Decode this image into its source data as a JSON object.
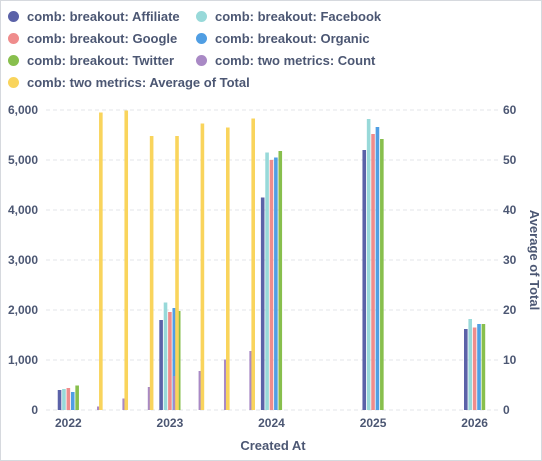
{
  "legend": [
    {
      "label": "comb: breakout: Affiliate",
      "color": "#5b62a8"
    },
    {
      "label": "comb: breakout: Facebook",
      "color": "#98d9d9"
    },
    {
      "label": "comb: breakout: Google",
      "color": "#ef8c8c"
    },
    {
      "label": "comb: breakout: Organic",
      "color": "#509ee3"
    },
    {
      "label": "comb: breakout: Twitter",
      "color": "#88bf4d"
    },
    {
      "label": "comb: two metrics: Count",
      "color": "#a989c5"
    },
    {
      "label": "comb: two metrics: Average of Total",
      "color": "#f9d45c"
    }
  ],
  "chart_data": {
    "type": "bar",
    "xlabel": "Created At",
    "ylabel": "",
    "y2label": "Average of Total",
    "x_ticks": [
      "2022",
      "2023",
      "2024",
      "2025",
      "2026"
    ],
    "y_ticks": [
      "0",
      "1,000",
      "2,000",
      "3,000",
      "4,000",
      "5,000",
      "6,000"
    ],
    "y2_ticks": [
      "0",
      "10",
      "20",
      "30",
      "40",
      "50",
      "60"
    ],
    "ylim": [
      0,
      6000
    ],
    "y2lim": [
      0,
      60
    ],
    "grid": true,
    "legend_position": "top",
    "breakout_series": [
      {
        "name": "comb: breakout: Affiliate",
        "color": "#5b62a8",
        "points": [
          {
            "x": 2022.0,
            "y": 400
          },
          {
            "x": 2023.0,
            "y": 1800
          },
          {
            "x": 2024.0,
            "y": 4250
          },
          {
            "x": 2025.0,
            "y": 5200
          },
          {
            "x": 2026.0,
            "y": 1620
          }
        ]
      },
      {
        "name": "comb: breakout: Facebook",
        "color": "#98d9d9",
        "points": [
          {
            "x": 2022.0,
            "y": 420
          },
          {
            "x": 2023.0,
            "y": 2150
          },
          {
            "x": 2024.0,
            "y": 5150
          },
          {
            "x": 2025.0,
            "y": 5820
          },
          {
            "x": 2026.0,
            "y": 1820
          }
        ]
      },
      {
        "name": "comb: breakout: Google",
        "color": "#ef8c8c",
        "points": [
          {
            "x": 2022.0,
            "y": 440
          },
          {
            "x": 2023.0,
            "y": 1960
          },
          {
            "x": 2024.0,
            "y": 5000
          },
          {
            "x": 2025.0,
            "y": 5520
          },
          {
            "x": 2026.0,
            "y": 1650
          }
        ]
      },
      {
        "name": "comb: breakout: Organic",
        "color": "#509ee3",
        "points": [
          {
            "x": 2022.0,
            "y": 360
          },
          {
            "x": 2023.0,
            "y": 2040
          },
          {
            "x": 2024.0,
            "y": 5050
          },
          {
            "x": 2025.0,
            "y": 5660
          },
          {
            "x": 2026.0,
            "y": 1720
          }
        ]
      },
      {
        "name": "comb: breakout: Twitter",
        "color": "#88bf4d",
        "points": [
          {
            "x": 2022.0,
            "y": 490
          },
          {
            "x": 2023.0,
            "y": 1980
          },
          {
            "x": 2024.0,
            "y": 5180
          },
          {
            "x": 2025.0,
            "y": 5420
          },
          {
            "x": 2026.0,
            "y": 1720
          }
        ]
      }
    ],
    "count_series": {
      "name": "comb: two metrics: Count",
      "color": "#a989c5",
      "points": [
        {
          "x": 2022.3,
          "y": 70
        },
        {
          "x": 2022.55,
          "y": 230
        },
        {
          "x": 2022.8,
          "y": 460
        },
        {
          "x": 2023.05,
          "y": 680
        },
        {
          "x": 2023.3,
          "y": 780
        },
        {
          "x": 2023.55,
          "y": 1010
        },
        {
          "x": 2023.8,
          "y": 1180
        }
      ]
    },
    "average_series": {
      "name": "comb: two metrics: Average of Total",
      "color": "#f9d45c",
      "points": [
        {
          "x": 2022.32,
          "y": 59.5
        },
        {
          "x": 2022.57,
          "y": 59.9
        },
        {
          "x": 2022.82,
          "y": 54.8
        },
        {
          "x": 2023.07,
          "y": 54.8
        },
        {
          "x": 2023.32,
          "y": 57.3
        },
        {
          "x": 2023.57,
          "y": 56.5
        },
        {
          "x": 2023.82,
          "y": 58.3
        }
      ]
    },
    "xlim": [
      2021.78,
      2026.25
    ]
  }
}
